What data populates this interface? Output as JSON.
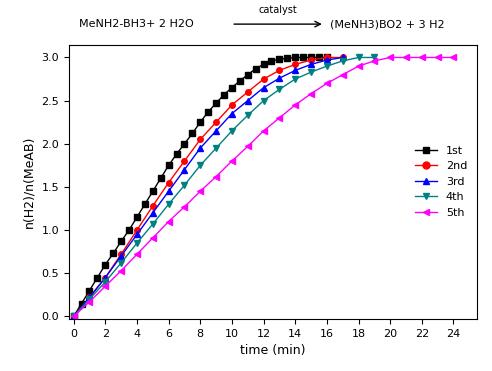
{
  "chart_data": {
    "type": "line",
    "x_label": "time (min)",
    "y_label": "n(H2)/n(MeAB)",
    "annotations": [
      "MeNH2-BH3+ 2 H2O",
      "catalyst",
      "(MeNH3)BO2 + 3 H2"
    ],
    "xlim": [
      -0.3,
      25.5
    ],
    "xticks": [
      0,
      2,
      4,
      6,
      8,
      10,
      12,
      14,
      16,
      18,
      20,
      22,
      24
    ],
    "ylim": [
      -0.03,
      3.15
    ],
    "yticks": [
      0.0,
      0.5,
      1.0,
      1.5,
      2.0,
      2.5,
      3.0
    ],
    "grid": false,
    "legend": "center right",
    "series": [
      {
        "name": "1st",
        "color": "#000000",
        "marker": "square",
        "line_style": "solid",
        "x": [
          0,
          0.5,
          1,
          1.5,
          2,
          2.5,
          3,
          3.5,
          4,
          4.5,
          5,
          5.5,
          6,
          6.5,
          7,
          7.5,
          8,
          8.5,
          9,
          9.5,
          10,
          10.5,
          11,
          11.5,
          12,
          12.5,
          13,
          13.5,
          14,
          14.5,
          15,
          15.5,
          16
        ],
        "values": [
          0,
          0.15,
          0.3,
          0.45,
          0.6,
          0.73,
          0.87,
          1.0,
          1.15,
          1.3,
          1.45,
          1.6,
          1.75,
          1.88,
          2.0,
          2.12,
          2.25,
          2.37,
          2.47,
          2.57,
          2.65,
          2.73,
          2.8,
          2.87,
          2.92,
          2.96,
          2.98,
          2.99,
          3.0,
          3.0,
          3.0,
          3.0,
          3.0
        ]
      },
      {
        "name": "2nd",
        "color": "#ff0000",
        "marker": "circle",
        "line_style": "solid",
        "x": [
          0,
          1,
          2,
          3,
          4,
          5,
          6,
          7,
          8,
          9,
          10,
          11,
          12,
          13,
          14,
          15,
          16,
          17
        ],
        "values": [
          0,
          0.22,
          0.45,
          0.72,
          1.0,
          1.28,
          1.55,
          1.8,
          2.05,
          2.25,
          2.45,
          2.6,
          2.75,
          2.85,
          2.92,
          2.97,
          3.0,
          3.0
        ]
      },
      {
        "name": "3rd",
        "color": "#0000ff",
        "marker": "triangle_up",
        "line_style": "solid",
        "x": [
          0,
          1,
          2,
          3,
          4,
          5,
          6,
          7,
          8,
          9,
          10,
          11,
          12,
          13,
          14,
          15,
          16,
          17
        ],
        "values": [
          0,
          0.22,
          0.45,
          0.7,
          0.95,
          1.2,
          1.45,
          1.7,
          1.95,
          2.15,
          2.35,
          2.5,
          2.65,
          2.76,
          2.85,
          2.92,
          2.97,
          3.0
        ]
      },
      {
        "name": "4th",
        "color": "#008080",
        "marker": "triangle_down",
        "line_style": "solid",
        "x": [
          0,
          1,
          2,
          3,
          4,
          5,
          6,
          7,
          8,
          9,
          10,
          11,
          12,
          13,
          14,
          15,
          16,
          17,
          18,
          19
        ],
        "values": [
          0,
          0.2,
          0.4,
          0.62,
          0.85,
          1.07,
          1.3,
          1.52,
          1.75,
          1.95,
          2.15,
          2.33,
          2.5,
          2.63,
          2.75,
          2.83,
          2.9,
          2.96,
          3.0,
          3.0
        ]
      },
      {
        "name": "5th",
        "color": "#ff00ff",
        "marker": "triangle_left",
        "line_style": "solid",
        "x": [
          0,
          1,
          2,
          3,
          4,
          5,
          6,
          7,
          8,
          9,
          10,
          11,
          12,
          13,
          14,
          15,
          16,
          17,
          18,
          19,
          20,
          21,
          22,
          23,
          24
        ],
        "values": [
          0,
          0.17,
          0.35,
          0.53,
          0.72,
          0.91,
          1.1,
          1.27,
          1.45,
          1.62,
          1.8,
          1.97,
          2.15,
          2.3,
          2.45,
          2.58,
          2.7,
          2.8,
          2.9,
          2.96,
          3.0,
          3.0,
          3.0,
          3.0,
          3.0
        ]
      }
    ]
  }
}
